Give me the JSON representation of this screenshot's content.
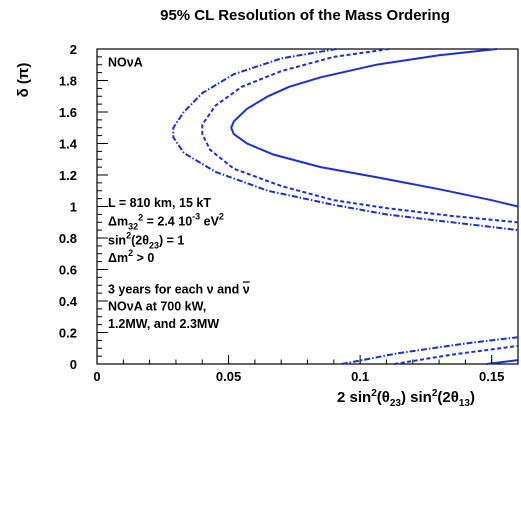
{
  "chart_data": {
    "type": "line",
    "title": "95% CL Resolution of the Mass Ordering",
    "ylabel": "δ (π)",
    "xlabel": {
      "text": "2 sin²(θ₂₃) sin²(2θ₁₃)",
      "base": "2 sin",
      "sup1": "2",
      "mid1": "(θ",
      "sub1": "23",
      "mid2": ") sin",
      "sup2": "2",
      "mid3": "(2θ",
      "sub2": "13",
      "end": ")"
    },
    "xlim": [
      0,
      0.16
    ],
    "ylim": [
      0,
      2
    ],
    "x_ticks": [
      0,
      0.05,
      0.1,
      0.15
    ],
    "x_tick_labels": [
      "0",
      "0.05",
      "0.1",
      "0.15"
    ],
    "y_ticks": [
      0,
      0.2,
      0.4,
      0.6,
      0.8,
      1,
      1.2,
      1.4,
      1.6,
      1.8,
      2
    ],
    "y_tick_labels": [
      "0",
      "0.2",
      "0.4",
      "0.6",
      "0.8",
      "1",
      "1.2",
      "1.4",
      "1.6",
      "1.8",
      "2"
    ],
    "grid": false,
    "line_color": "#1b2fd4",
    "series": [
      {
        "style": "solid",
        "points": [
          [
            0.152,
            2.0
          ],
          [
            0.13,
            1.96
          ],
          [
            0.106,
            1.9
          ],
          [
            0.085,
            1.82
          ],
          [
            0.073,
            1.76
          ],
          [
            0.065,
            1.7
          ],
          [
            0.057,
            1.62
          ],
          [
            0.052,
            1.54
          ],
          [
            0.051,
            1.5
          ],
          [
            0.052,
            1.46
          ],
          [
            0.057,
            1.4
          ],
          [
            0.067,
            1.33
          ],
          [
            0.085,
            1.25
          ],
          [
            0.105,
            1.19
          ],
          [
            0.13,
            1.11
          ],
          [
            0.15,
            1.04
          ],
          [
            0.16,
            1.0
          ]
        ],
        "lower_points": [
          [
            0.148,
            0.0
          ],
          [
            0.16,
            0.025
          ]
        ]
      },
      {
        "style": "dashed",
        "points": [
          [
            0.111,
            2.0
          ],
          [
            0.09,
            1.95
          ],
          [
            0.07,
            1.86
          ],
          [
            0.055,
            1.76
          ],
          [
            0.045,
            1.64
          ],
          [
            0.04,
            1.52
          ],
          [
            0.04,
            1.46
          ],
          [
            0.043,
            1.36
          ],
          [
            0.052,
            1.24
          ],
          [
            0.07,
            1.13
          ],
          [
            0.09,
            1.04
          ],
          [
            0.11,
            0.99
          ],
          [
            0.135,
            0.94
          ],
          [
            0.16,
            0.9
          ]
        ],
        "lower_points": [
          [
            0.113,
            0.0
          ],
          [
            0.135,
            0.06
          ],
          [
            0.16,
            0.115
          ]
        ]
      },
      {
        "style": "dashdot",
        "points": [
          [
            0.091,
            2.0
          ],
          [
            0.07,
            1.94
          ],
          [
            0.052,
            1.84
          ],
          [
            0.04,
            1.72
          ],
          [
            0.033,
            1.6
          ],
          [
            0.029,
            1.5
          ],
          [
            0.029,
            1.44
          ],
          [
            0.033,
            1.34
          ],
          [
            0.045,
            1.22
          ],
          [
            0.065,
            1.1
          ],
          [
            0.09,
            1.01
          ],
          [
            0.11,
            0.95
          ],
          [
            0.135,
            0.9
          ],
          [
            0.16,
            0.85
          ]
        ],
        "lower_points": [
          [
            0.093,
            0.0
          ],
          [
            0.115,
            0.07
          ],
          [
            0.14,
            0.13
          ],
          [
            0.16,
            0.17
          ]
        ]
      }
    ],
    "annotations": {
      "experiment": "NOνA",
      "baseline": "L = 810 km, 15 kT",
      "dm32_label_a": "Δm",
      "dm32_sub": "32",
      "dm32_sup": "2",
      "dm32_label_b": " = 2.4 10",
      "dm32_exp": "-3",
      "dm32_unit": " eV",
      "dm32_unit_sup": "2",
      "sin_a": "sin",
      "sin_sup": "2",
      "sin_b": "(2θ",
      "sin_sub": "23",
      "sin_c": ") = 1",
      "dm2_a": "Δm",
      "dm2_sup": "2",
      "dm2_b": " > 0",
      "years_a": "3 years for each ν and ",
      "years_nubar": "ν",
      "power_line1": "NOνA at 700 kW,",
      "power_line2": "1.2MW, and 2.3MW"
    }
  }
}
